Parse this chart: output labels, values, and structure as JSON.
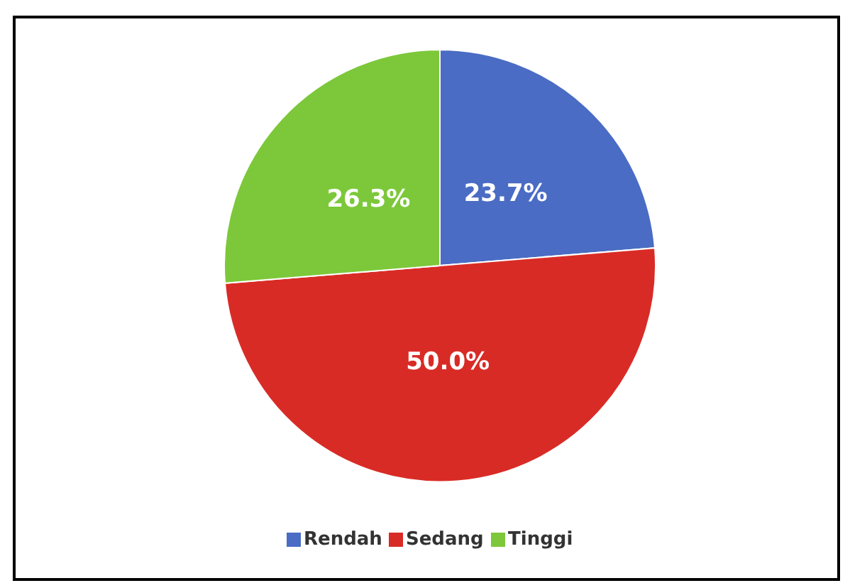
{
  "chart_data": {
    "type": "pie",
    "categories": [
      "Rendah",
      "Sedang",
      "Tinggi"
    ],
    "values": [
      23.7,
      50.0,
      26.3
    ],
    "colors": [
      "#4a6cc4",
      "#d92b26",
      "#7cc83a"
    ],
    "value_labels": [
      "23.7%",
      "50.0%",
      "26.3%"
    ],
    "legend": "bottom"
  }
}
